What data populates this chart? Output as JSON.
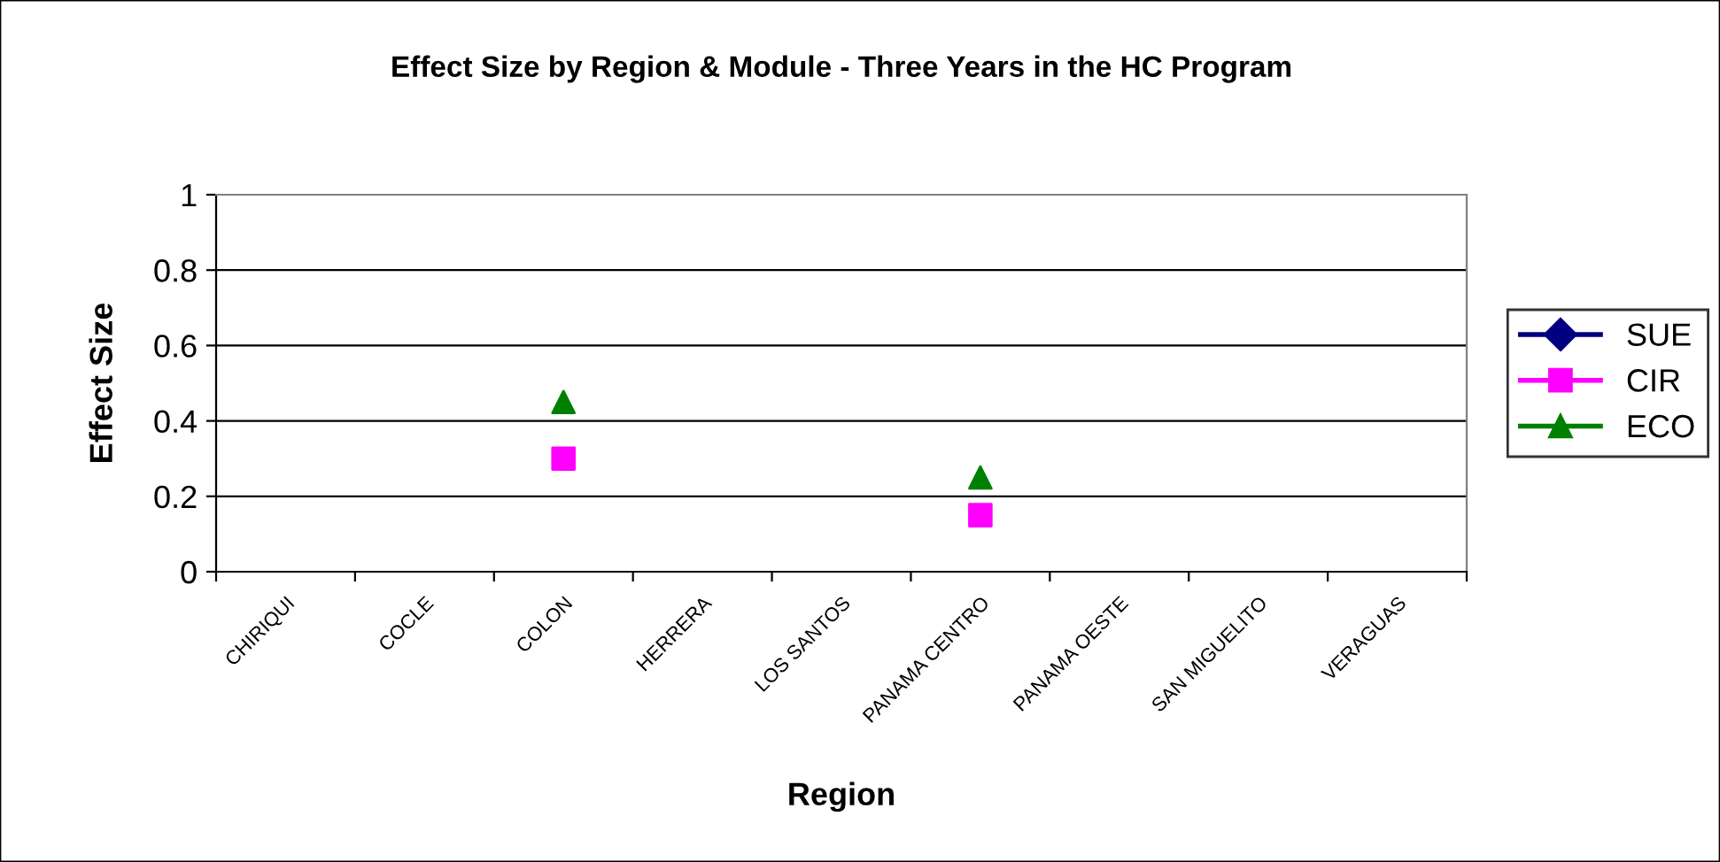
{
  "chart_data": {
    "type": "scatter",
    "title": "Effect Size by Region & Module - Three Years in the HC Program",
    "xlabel": "Region",
    "ylabel": "Effect Size",
    "categories": [
      "CHIRIQUI",
      "COCLE",
      "COLON",
      "HERRERA",
      "LOS SANTOS",
      "PANAMA CENTRO",
      "PANAMA OESTE",
      "SAN MIGUELITO",
      "VERAGUAS"
    ],
    "series": [
      {
        "name": "SUE",
        "color": "#000080",
        "marker": "diamond",
        "values": [
          null,
          null,
          null,
          null,
          null,
          null,
          null,
          null,
          null
        ]
      },
      {
        "name": "CIR",
        "color": "#ff00ff",
        "marker": "square",
        "values": [
          null,
          null,
          0.3,
          null,
          null,
          0.15,
          null,
          null,
          null
        ]
      },
      {
        "name": "ECO",
        "color": "#008000",
        "marker": "triangle",
        "values": [
          null,
          null,
          0.45,
          null,
          null,
          0.25,
          null,
          null,
          null
        ]
      }
    ],
    "ylim": [
      0,
      1
    ],
    "yticks": [
      0,
      0.2,
      0.4,
      0.6,
      0.8,
      1
    ],
    "grid": "y",
    "legend": "right",
    "line_style": "solid"
  }
}
